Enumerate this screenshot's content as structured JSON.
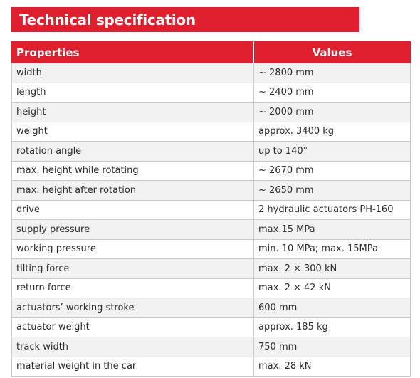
{
  "title": "Technical specification",
  "table": {
    "headers": {
      "properties": "Properties",
      "values": "Values"
    },
    "rows": [
      {
        "property": "width",
        "value": "~ 2800 mm"
      },
      {
        "property": "length",
        "value": "~ 2400 mm"
      },
      {
        "property": "height",
        "value": "~ 2000 mm"
      },
      {
        "property": "weight",
        "value": "approx. 3400 kg"
      },
      {
        "property": "rotation angle",
        "value": "up to 140°"
      },
      {
        "property": "max. height while rotating",
        "value": "~ 2670 mm"
      },
      {
        "property": "max. height after rotation",
        "value": "~ 2650 mm"
      },
      {
        "property": "drive",
        "value": "2 hydraulic actuators PH-160"
      },
      {
        "property": "supply pressure",
        "value": "max.15 MPa"
      },
      {
        "property": "working pressure",
        "value": "min. 10 MPa; max. 15MPa"
      },
      {
        "property": "tilting force",
        "value": "max. 2 × 300 kN"
      },
      {
        "property": "return force",
        "value": "max. 2 × 42 kN"
      },
      {
        "property": "actuators’ working stroke",
        "value": "600 mm"
      },
      {
        "property": "actuator weight",
        "value": "approx. 185 kg"
      },
      {
        "property": "track width",
        "value": "750 mm"
      },
      {
        "property": "material weight in the car",
        "value": "max. 28 kN"
      }
    ]
  },
  "colors": {
    "accent": "#df1f2d",
    "header_text": "#ffffff",
    "row_alt": "#f2f2f2",
    "border": "#c9c9c9"
  }
}
